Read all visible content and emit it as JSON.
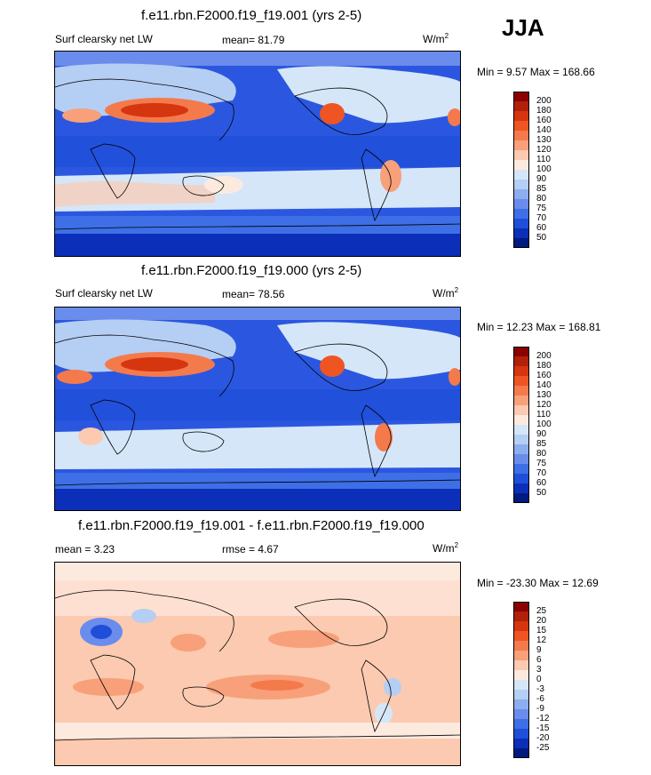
{
  "season": "JJA",
  "panels": [
    {
      "title": "f.e11.rbn.F2000.f19_f19.001 (yrs 2-5)",
      "left_label": "Surf clearsky net LW",
      "center_label": "mean=  81.79",
      "units": "W/m",
      "units_exp": "2",
      "minmax": "Min =   9.57 Max = 168.66",
      "colorbar": {
        "labels": [
          "200",
          "180",
          "160",
          "140",
          "130",
          "120",
          "110",
          "100",
          "90",
          "85",
          "80",
          "75",
          "70",
          "60",
          "50"
        ],
        "colors": [
          "#8b0000",
          "#b0200a",
          "#d5350f",
          "#ee5522",
          "#f47a4c",
          "#f7a07a",
          "#fbcab0",
          "#fdeadf",
          "#d5e6f8",
          "#b5cef3",
          "#8caeef",
          "#6a8cec",
          "#3e6fe6",
          "#1f4fd9",
          "#0b2fb8",
          "#001a7f"
        ]
      }
    },
    {
      "title": "f.e11.rbn.F2000.f19_f19.000 (yrs 2-5)",
      "left_label": "Surf clearsky net LW",
      "center_label": "mean=  78.56",
      "units": "W/m",
      "units_exp": "2",
      "minmax": "Min =  12.23 Max = 168.81",
      "colorbar": {
        "labels": [
          "200",
          "180",
          "160",
          "140",
          "130",
          "120",
          "110",
          "100",
          "90",
          "85",
          "80",
          "75",
          "70",
          "60",
          "50"
        ],
        "colors": [
          "#8b0000",
          "#b0200a",
          "#d5350f",
          "#ee5522",
          "#f47a4c",
          "#f7a07a",
          "#fbcab0",
          "#fdeadf",
          "#d5e6f8",
          "#b5cef3",
          "#8caeef",
          "#6a8cec",
          "#3e6fe6",
          "#1f4fd9",
          "#0b2fb8",
          "#001a7f"
        ]
      }
    },
    {
      "title": "f.e11.rbn.F2000.f19_f19.001 - f.e11.rbn.F2000.f19_f19.000",
      "left_label": "mean =   3.23",
      "center_label": "rmse =   4.67",
      "units": "W/m",
      "units_exp": "2",
      "minmax": "Min = -23.30 Max =  12.69",
      "colorbar": {
        "labels": [
          "25",
          "20",
          "15",
          "12",
          "9",
          "6",
          "3",
          "0",
          "-3",
          "-6",
          "-9",
          "-12",
          "-15",
          "-20",
          "-25"
        ],
        "colors": [
          "#8b0000",
          "#b0200a",
          "#d5350f",
          "#ee5522",
          "#f47a4c",
          "#f7a07a",
          "#fbcab0",
          "#fdeadf",
          "#d5e6f8",
          "#b5cef3",
          "#8caeef",
          "#6a8cec",
          "#3e6fe6",
          "#1f4fd9",
          "#0b2fb8",
          "#001a7f"
        ]
      }
    }
  ]
}
